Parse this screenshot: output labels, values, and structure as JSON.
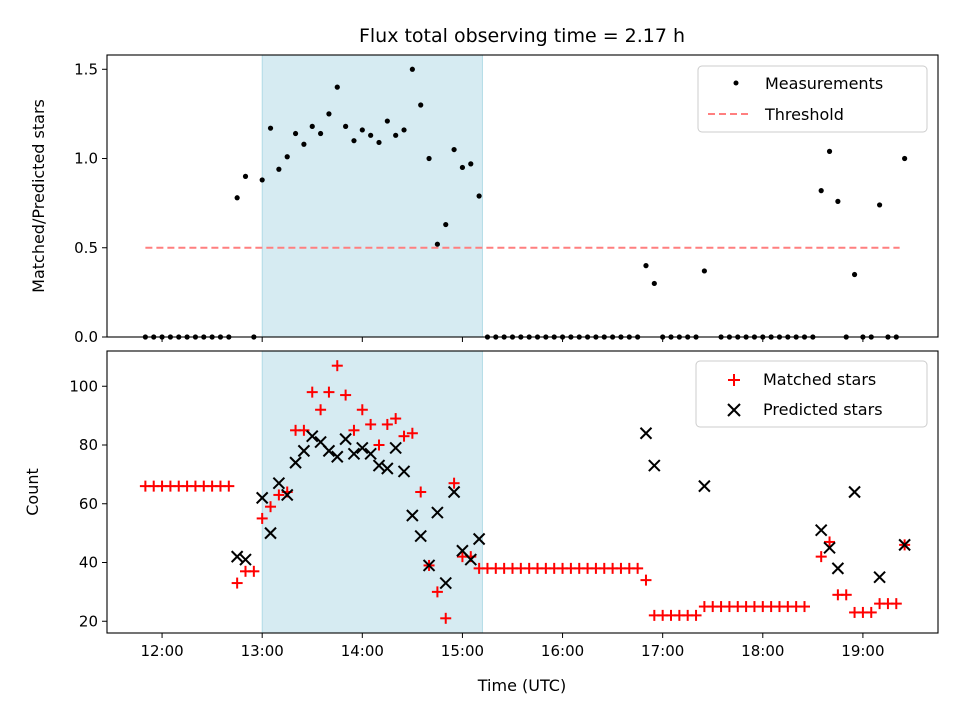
{
  "chart_data": [
    {
      "type": "scatter",
      "title": "Flux total observing time = 2.17 h",
      "xlabel": "",
      "ylabel": "Matched/Predicted stars",
      "xlim": [
        "11:27",
        "19:45"
      ],
      "ylim": [
        0,
        1.58
      ],
      "yticks": [
        0.0,
        0.5,
        1.0,
        1.5
      ],
      "ytick_labels": [
        "0.0",
        "0.5",
        "1.0",
        "1.5"
      ],
      "grid": false,
      "legend": "top-right",
      "shaded_span": [
        "13:00",
        "15:12"
      ],
      "threshold": {
        "name": "Threshold",
        "value": 0.5,
        "x_range": [
          "11:50",
          "19:22"
        ],
        "color": "#ff7f7f"
      },
      "series": [
        {
          "name": "Measurements",
          "color": "#000000",
          "marker": "dot",
          "points": [
            [
              "11:50",
              0
            ],
            [
              "11:55",
              0
            ],
            [
              "12:00",
              0
            ],
            [
              "12:05",
              0
            ],
            [
              "12:10",
              0
            ],
            [
              "12:15",
              0
            ],
            [
              "12:20",
              0
            ],
            [
              "12:25",
              0
            ],
            [
              "12:30",
              0
            ],
            [
              "12:35",
              0
            ],
            [
              "12:40",
              0
            ],
            [
              "12:45",
              0.78
            ],
            [
              "12:50",
              0.9
            ],
            [
              "12:55",
              0
            ],
            [
              "13:00",
              0.88
            ],
            [
              "13:05",
              1.17
            ],
            [
              "13:10",
              0.94
            ],
            [
              "13:15",
              1.01
            ],
            [
              "13:20",
              1.14
            ],
            [
              "13:25",
              1.08
            ],
            [
              "13:30",
              1.18
            ],
            [
              "13:35",
              1.14
            ],
            [
              "13:40",
              1.25
            ],
            [
              "13:45",
              1.4
            ],
            [
              "13:50",
              1.18
            ],
            [
              "13:55",
              1.1
            ],
            [
              "14:00",
              1.16
            ],
            [
              "14:05",
              1.13
            ],
            [
              "14:10",
              1.09
            ],
            [
              "14:15",
              1.21
            ],
            [
              "14:20",
              1.13
            ],
            [
              "14:25",
              1.16
            ],
            [
              "14:30",
              1.5
            ],
            [
              "14:35",
              1.3
            ],
            [
              "14:40",
              1.0
            ],
            [
              "14:45",
              0.52
            ],
            [
              "14:50",
              0.63
            ],
            [
              "14:55",
              1.05
            ],
            [
              "15:00",
              0.95
            ],
            [
              "15:05",
              0.97
            ],
            [
              "15:10",
              0.79
            ],
            [
              "15:15",
              0
            ],
            [
              "15:20",
              0
            ],
            [
              "15:25",
              0
            ],
            [
              "15:30",
              0
            ],
            [
              "15:35",
              0
            ],
            [
              "15:40",
              0
            ],
            [
              "15:45",
              0
            ],
            [
              "15:50",
              0
            ],
            [
              "15:55",
              0
            ],
            [
              "16:00",
              0
            ],
            [
              "16:05",
              0
            ],
            [
              "16:10",
              0
            ],
            [
              "16:15",
              0
            ],
            [
              "16:20",
              0
            ],
            [
              "16:25",
              0
            ],
            [
              "16:30",
              0
            ],
            [
              "16:35",
              0
            ],
            [
              "16:40",
              0
            ],
            [
              "16:45",
              0
            ],
            [
              "16:50",
              0.4
            ],
            [
              "16:55",
              0.3
            ],
            [
              "17:00",
              0
            ],
            [
              "17:05",
              0
            ],
            [
              "17:10",
              0
            ],
            [
              "17:15",
              0
            ],
            [
              "17:20",
              0
            ],
            [
              "17:25",
              0.37
            ],
            [
              "17:35",
              0
            ],
            [
              "17:40",
              0
            ],
            [
              "17:45",
              0
            ],
            [
              "17:50",
              0
            ],
            [
              "17:55",
              0
            ],
            [
              "18:00",
              0
            ],
            [
              "18:05",
              0
            ],
            [
              "18:10",
              0
            ],
            [
              "18:15",
              0
            ],
            [
              "18:20",
              0
            ],
            [
              "18:25",
              0
            ],
            [
              "18:30",
              0
            ],
            [
              "18:35",
              0.82
            ],
            [
              "18:40",
              1.04
            ],
            [
              "18:45",
              0.76
            ],
            [
              "18:50",
              0
            ],
            [
              "18:55",
              0.35
            ],
            [
              "19:00",
              0
            ],
            [
              "19:05",
              0
            ],
            [
              "19:10",
              0.74
            ],
            [
              "19:15",
              0
            ],
            [
              "19:20",
              0
            ],
            [
              "19:25",
              1.0
            ]
          ]
        }
      ]
    },
    {
      "type": "scatter",
      "title": "",
      "xlabel": "Time (UTC)",
      "ylabel": "Count",
      "xlim": [
        "11:27",
        "19:45"
      ],
      "ylim": [
        16,
        112
      ],
      "yticks": [
        20,
        40,
        60,
        80,
        100
      ],
      "ytick_labels": [
        "20",
        "40",
        "60",
        "80",
        "100"
      ],
      "xticks": [
        "12:00",
        "13:00",
        "14:00",
        "15:00",
        "16:00",
        "17:00",
        "18:00",
        "19:00"
      ],
      "grid": false,
      "legend": "top-right",
      "shaded_span": [
        "13:00",
        "15:12"
      ],
      "series": [
        {
          "name": "Matched stars",
          "color": "#ff0000",
          "marker": "plus",
          "points": [
            [
              "11:50",
              66
            ],
            [
              "11:55",
              66
            ],
            [
              "12:00",
              66
            ],
            [
              "12:05",
              66
            ],
            [
              "12:10",
              66
            ],
            [
              "12:15",
              66
            ],
            [
              "12:20",
              66
            ],
            [
              "12:25",
              66
            ],
            [
              "12:30",
              66
            ],
            [
              "12:35",
              66
            ],
            [
              "12:40",
              66
            ],
            [
              "12:45",
              33
            ],
            [
              "12:50",
              37
            ],
            [
              "12:55",
              37
            ],
            [
              "13:00",
              55
            ],
            [
              "13:05",
              59
            ],
            [
              "13:10",
              63
            ],
            [
              "13:15",
              64
            ],
            [
              "13:20",
              85
            ],
            [
              "13:25",
              85
            ],
            [
              "13:30",
              98
            ],
            [
              "13:35",
              92
            ],
            [
              "13:40",
              98
            ],
            [
              "13:45",
              107
            ],
            [
              "13:50",
              97
            ],
            [
              "13:55",
              85
            ],
            [
              "14:00",
              92
            ],
            [
              "14:05",
              87
            ],
            [
              "14:10",
              80
            ],
            [
              "14:15",
              87
            ],
            [
              "14:20",
              89
            ],
            [
              "14:25",
              83
            ],
            [
              "14:30",
              84
            ],
            [
              "14:35",
              64
            ],
            [
              "14:40",
              39
            ],
            [
              "14:45",
              30
            ],
            [
              "14:50",
              21
            ],
            [
              "14:55",
              67
            ],
            [
              "15:00",
              42
            ],
            [
              "15:05",
              42
            ],
            [
              "15:10",
              38
            ],
            [
              "15:15",
              38
            ],
            [
              "15:20",
              38
            ],
            [
              "15:25",
              38
            ],
            [
              "15:30",
              38
            ],
            [
              "15:35",
              38
            ],
            [
              "15:40",
              38
            ],
            [
              "15:45",
              38
            ],
            [
              "15:50",
              38
            ],
            [
              "15:55",
              38
            ],
            [
              "16:00",
              38
            ],
            [
              "16:05",
              38
            ],
            [
              "16:10",
              38
            ],
            [
              "16:15",
              38
            ],
            [
              "16:20",
              38
            ],
            [
              "16:25",
              38
            ],
            [
              "16:30",
              38
            ],
            [
              "16:35",
              38
            ],
            [
              "16:40",
              38
            ],
            [
              "16:45",
              38
            ],
            [
              "16:50",
              34
            ],
            [
              "16:55",
              22
            ],
            [
              "17:00",
              22
            ],
            [
              "17:05",
              22
            ],
            [
              "17:10",
              22
            ],
            [
              "17:15",
              22
            ],
            [
              "17:20",
              22
            ],
            [
              "17:25",
              25
            ],
            [
              "17:30",
              25
            ],
            [
              "17:35",
              25
            ],
            [
              "17:40",
              25
            ],
            [
              "17:45",
              25
            ],
            [
              "17:50",
              25
            ],
            [
              "17:55",
              25
            ],
            [
              "18:00",
              25
            ],
            [
              "18:05",
              25
            ],
            [
              "18:10",
              25
            ],
            [
              "18:15",
              25
            ],
            [
              "18:20",
              25
            ],
            [
              "18:25",
              25
            ],
            [
              "18:35",
              42
            ],
            [
              "18:40",
              47
            ],
            [
              "18:45",
              29
            ],
            [
              "18:50",
              29
            ],
            [
              "18:55",
              23
            ],
            [
              "19:00",
              23
            ],
            [
              "19:05",
              23
            ],
            [
              "19:10",
              26
            ],
            [
              "19:15",
              26
            ],
            [
              "19:20",
              26
            ],
            [
              "19:25",
              46
            ]
          ]
        },
        {
          "name": "Predicted stars",
          "color": "#000000",
          "marker": "x",
          "points": [
            [
              "12:45",
              42
            ],
            [
              "12:50",
              41
            ],
            [
              "13:00",
              62
            ],
            [
              "13:05",
              50
            ],
            [
              "13:10",
              67
            ],
            [
              "13:15",
              63
            ],
            [
              "13:20",
              74
            ],
            [
              "13:25",
              78
            ],
            [
              "13:30",
              83
            ],
            [
              "13:35",
              81
            ],
            [
              "13:40",
              78
            ],
            [
              "13:45",
              76
            ],
            [
              "13:50",
              82
            ],
            [
              "13:55",
              77
            ],
            [
              "14:00",
              79
            ],
            [
              "14:05",
              77
            ],
            [
              "14:10",
              73
            ],
            [
              "14:15",
              72
            ],
            [
              "14:20",
              79
            ],
            [
              "14:25",
              71
            ],
            [
              "14:30",
              56
            ],
            [
              "14:35",
              49
            ],
            [
              "14:40",
              39
            ],
            [
              "14:45",
              57
            ],
            [
              "14:50",
              33
            ],
            [
              "14:55",
              64
            ],
            [
              "15:00",
              44
            ],
            [
              "15:05",
              41
            ],
            [
              "15:10",
              48
            ],
            [
              "16:50",
              84
            ],
            [
              "16:55",
              73
            ],
            [
              "17:25",
              66
            ],
            [
              "18:35",
              51
            ],
            [
              "18:40",
              45
            ],
            [
              "18:45",
              38
            ],
            [
              "18:55",
              64
            ],
            [
              "19:10",
              35
            ],
            [
              "19:25",
              46
            ]
          ]
        }
      ]
    }
  ]
}
